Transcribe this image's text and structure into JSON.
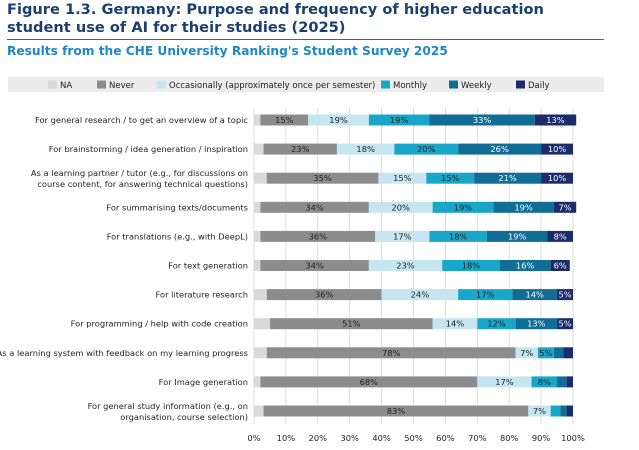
{
  "figure_title": "Figure 1.3. Germany: Purpose and frequency of higher education student use of AI for their studies (2025)",
  "subtitle": "Results from the CHE University Ranking's Student Survey 2025",
  "chart_data": {
    "type": "bar",
    "orientation": "horizontal",
    "stacked": true,
    "xlim": [
      0,
      100
    ],
    "x_ticks": [
      "0%",
      "10%",
      "20%",
      "30%",
      "40%",
      "50%",
      "60%",
      "70%",
      "80%",
      "90%",
      "100%"
    ],
    "legend_position": "top",
    "categories": [
      [
        "For general research / to get an overview of a topic"
      ],
      [
        "For brainstorming / idea generation / inspiration"
      ],
      [
        "As a learning partner / tutor (e.g., for discussions on",
        "course content, for answering technical questions)"
      ],
      [
        "For summarising texts/documents"
      ],
      [
        "For translations (e.g., with DeepL)"
      ],
      [
        "For text generation"
      ],
      [
        "For literature research"
      ],
      [
        "For programming / help with code creation"
      ],
      [
        "As a learning system with feedback on my learning progress"
      ],
      [
        "For Image generation"
      ],
      [
        "For general study information (e.g., on",
        "organisation, course selection)"
      ]
    ],
    "series": [
      {
        "name": "NA",
        "color": "#d9d9d9",
        "label_color": "#222222",
        "values": [
          2,
          3,
          4,
          2,
          2,
          2,
          4,
          5,
          4,
          2,
          3
        ],
        "labels": [
          "",
          "",
          "",
          "",
          "",
          "",
          "",
          "",
          "",
          "",
          ""
        ]
      },
      {
        "name": "Never",
        "color": "#8c8c8c",
        "label_color": "#222222",
        "values": [
          15,
          23,
          35,
          34,
          36,
          34,
          36,
          51,
          78,
          68,
          83
        ],
        "labels": [
          "15%",
          "23%",
          "35%",
          "34%",
          "36%",
          "34%",
          "36%",
          "51%",
          "78%",
          "68%",
          "83%"
        ]
      },
      {
        "name": "Occasionally (approximately once per semester)",
        "color": "#c5e6f0",
        "label_color": "#222222",
        "values": [
          19,
          18,
          15,
          20,
          17,
          23,
          24,
          14,
          7,
          17,
          7
        ],
        "labels": [
          "19%",
          "18%",
          "15%",
          "20%",
          "17%",
          "23%",
          "24%",
          "14%",
          "7%",
          "17%",
          "7%"
        ]
      },
      {
        "name": "Monthly",
        "color": "#18a7c9",
        "label_color": "#222222",
        "values": [
          19,
          20,
          15,
          19,
          18,
          18,
          17,
          12,
          5,
          8,
          3
        ],
        "labels": [
          "19%",
          "20%",
          "15%",
          "19%",
          "18%",
          "18%",
          "17%",
          "12%",
          "5%",
          "8%",
          ""
        ]
      },
      {
        "name": "Weekly",
        "color": "#0f6d96",
        "label_color": "#ffffff",
        "values": [
          33,
          26,
          21,
          19,
          19,
          16,
          14,
          13,
          3,
          3,
          2
        ],
        "labels": [
          "33%",
          "26%",
          "21%",
          "19%",
          "19%",
          "16%",
          "14%",
          "13%",
          "",
          "",
          ""
        ]
      },
      {
        "name": "Daily",
        "color": "#1c2c6b",
        "label_color": "#ffffff",
        "values": [
          13,
          10,
          10,
          7,
          8,
          6,
          5,
          5,
          3,
          2,
          2
        ],
        "labels": [
          "13%",
          "10%",
          "10%",
          "7%",
          "8%",
          "6%",
          "5%",
          "5%",
          "",
          "",
          ""
        ]
      }
    ]
  }
}
